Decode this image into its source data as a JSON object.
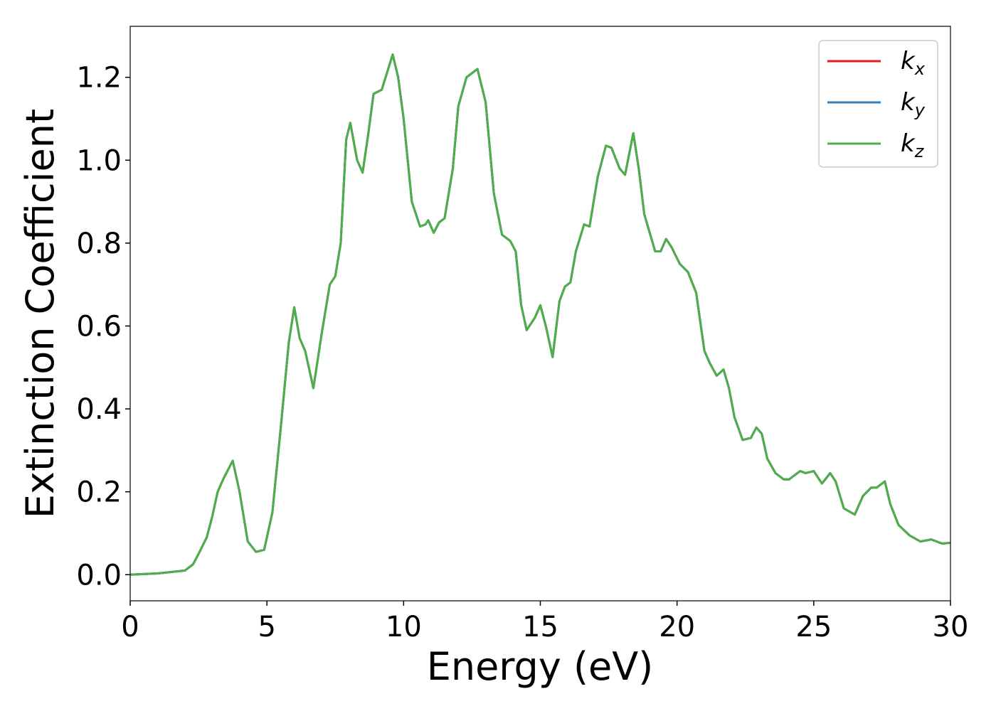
{
  "chart_data": {
    "type": "line",
    "x_label": "Energy (eV)",
    "y_label": "Extinction Coefficient",
    "x": [
      0,
      1,
      2,
      2.3,
      2.5,
      2.8,
      3.0,
      3.2,
      3.4,
      3.75,
      4.0,
      4.3,
      4.6,
      4.9,
      5.2,
      5.5,
      5.8,
      6.0,
      6.2,
      6.4,
      6.7,
      7.0,
      7.3,
      7.5,
      7.7,
      7.9,
      8.05,
      8.3,
      8.5,
      8.7,
      8.9,
      9.2,
      9.6,
      9.8,
      10.0,
      10.3,
      10.6,
      10.8,
      10.9,
      11.1,
      11.3,
      11.5,
      11.8,
      12.0,
      12.3,
      12.7,
      13.0,
      13.3,
      13.6,
      13.9,
      14.1,
      14.3,
      14.5,
      14.8,
      15.0,
      15.2,
      15.45,
      15.7,
      15.9,
      16.1,
      16.3,
      16.6,
      16.8,
      17.1,
      17.4,
      17.6,
      17.9,
      18.1,
      18.4,
      18.6,
      18.8,
      19.2,
      19.4,
      19.6,
      19.8,
      20.1,
      20.4,
      20.7,
      21.0,
      21.2,
      21.45,
      21.7,
      21.9,
      22.1,
      22.4,
      22.7,
      22.9,
      23.1,
      23.3,
      23.6,
      23.9,
      24.1,
      24.5,
      24.7,
      25.0,
      25.3,
      25.6,
      25.8,
      26.1,
      26.5,
      26.8,
      27.1,
      27.3,
      27.6,
      27.8,
      28.1,
      28.5,
      28.9,
      29.3,
      29.7,
      30.0
    ],
    "series": [
      {
        "name": "kx",
        "color": "#e41a1c",
        "values": [
          0,
          0.003,
          0.01,
          0.025,
          0.05,
          0.09,
          0.14,
          0.2,
          0.23,
          0.275,
          0.2,
          0.08,
          0.055,
          0.06,
          0.15,
          0.35,
          0.56,
          0.645,
          0.57,
          0.54,
          0.45,
          0.58,
          0.7,
          0.72,
          0.8,
          1.05,
          1.09,
          1.0,
          0.97,
          1.06,
          1.16,
          1.17,
          1.255,
          1.2,
          1.1,
          0.9,
          0.84,
          0.845,
          0.855,
          0.825,
          0.85,
          0.86,
          0.98,
          1.13,
          1.2,
          1.22,
          1.14,
          0.92,
          0.82,
          0.805,
          0.78,
          0.65,
          0.59,
          0.62,
          0.65,
          0.6,
          0.525,
          0.66,
          0.695,
          0.705,
          0.78,
          0.845,
          0.84,
          0.96,
          1.035,
          1.03,
          0.98,
          0.965,
          1.065,
          0.98,
          0.87,
          0.78,
          0.78,
          0.81,
          0.79,
          0.75,
          0.73,
          0.68,
          0.54,
          0.51,
          0.48,
          0.495,
          0.45,
          0.38,
          0.325,
          0.33,
          0.355,
          0.34,
          0.28,
          0.245,
          0.23,
          0.23,
          0.25,
          0.245,
          0.25,
          0.22,
          0.245,
          0.225,
          0.16,
          0.145,
          0.19,
          0.21,
          0.21,
          0.225,
          0.17,
          0.12,
          0.095,
          0.08,
          0.085,
          0.075,
          0.077
        ]
      },
      {
        "name": "ky",
        "color": "#377eb8",
        "values": [
          0,
          0.003,
          0.01,
          0.025,
          0.05,
          0.09,
          0.14,
          0.2,
          0.23,
          0.275,
          0.2,
          0.08,
          0.055,
          0.06,
          0.15,
          0.35,
          0.56,
          0.645,
          0.57,
          0.54,
          0.45,
          0.58,
          0.7,
          0.72,
          0.8,
          1.05,
          1.09,
          1.0,
          0.97,
          1.06,
          1.16,
          1.17,
          1.255,
          1.2,
          1.1,
          0.9,
          0.84,
          0.845,
          0.855,
          0.825,
          0.85,
          0.86,
          0.98,
          1.13,
          1.2,
          1.22,
          1.14,
          0.92,
          0.82,
          0.805,
          0.78,
          0.65,
          0.59,
          0.62,
          0.65,
          0.6,
          0.525,
          0.66,
          0.695,
          0.705,
          0.78,
          0.845,
          0.84,
          0.96,
          1.035,
          1.03,
          0.98,
          0.965,
          1.065,
          0.98,
          0.87,
          0.78,
          0.78,
          0.81,
          0.79,
          0.75,
          0.73,
          0.68,
          0.54,
          0.51,
          0.48,
          0.495,
          0.45,
          0.38,
          0.325,
          0.33,
          0.355,
          0.34,
          0.28,
          0.245,
          0.23,
          0.23,
          0.25,
          0.245,
          0.25,
          0.22,
          0.245,
          0.225,
          0.16,
          0.145,
          0.19,
          0.21,
          0.21,
          0.225,
          0.17,
          0.12,
          0.095,
          0.08,
          0.085,
          0.075,
          0.077
        ]
      },
      {
        "name": "kz",
        "color": "#4daf4a",
        "values": [
          0,
          0.003,
          0.01,
          0.025,
          0.05,
          0.09,
          0.14,
          0.2,
          0.23,
          0.275,
          0.2,
          0.08,
          0.055,
          0.06,
          0.15,
          0.35,
          0.56,
          0.645,
          0.57,
          0.54,
          0.45,
          0.58,
          0.7,
          0.72,
          0.8,
          1.05,
          1.09,
          1.0,
          0.97,
          1.06,
          1.16,
          1.17,
          1.255,
          1.2,
          1.1,
          0.9,
          0.84,
          0.845,
          0.855,
          0.825,
          0.85,
          0.86,
          0.98,
          1.13,
          1.2,
          1.22,
          1.14,
          0.92,
          0.82,
          0.805,
          0.78,
          0.65,
          0.59,
          0.62,
          0.65,
          0.6,
          0.525,
          0.66,
          0.695,
          0.705,
          0.78,
          0.845,
          0.84,
          0.96,
          1.035,
          1.03,
          0.98,
          0.965,
          1.065,
          0.98,
          0.87,
          0.78,
          0.78,
          0.81,
          0.79,
          0.75,
          0.73,
          0.68,
          0.54,
          0.51,
          0.48,
          0.495,
          0.45,
          0.38,
          0.325,
          0.33,
          0.355,
          0.34,
          0.28,
          0.245,
          0.23,
          0.23,
          0.25,
          0.245,
          0.25,
          0.22,
          0.245,
          0.225,
          0.16,
          0.145,
          0.19,
          0.21,
          0.21,
          0.225,
          0.17,
          0.12,
          0.095,
          0.08,
          0.085,
          0.075,
          0.077
        ]
      }
    ],
    "xlim": [
      0,
      30
    ],
    "xticks": [
      0,
      5,
      10,
      15,
      20,
      25,
      30
    ],
    "ylim": [
      -0.063,
      1.323
    ],
    "yticks": [
      {
        "value": 0,
        "label": "0.0"
      },
      {
        "value": 0.2,
        "label": "0.2"
      },
      {
        "value": 0.4,
        "label": "0.4"
      },
      {
        "value": 0.6,
        "label": "0.6"
      },
      {
        "value": 0.8,
        "label": "0.8"
      },
      {
        "value": 1.0,
        "label": "1.0"
      },
      {
        "value": 1.2,
        "label": "1.2"
      }
    ],
    "grid": false,
    "legend": "upper right"
  }
}
